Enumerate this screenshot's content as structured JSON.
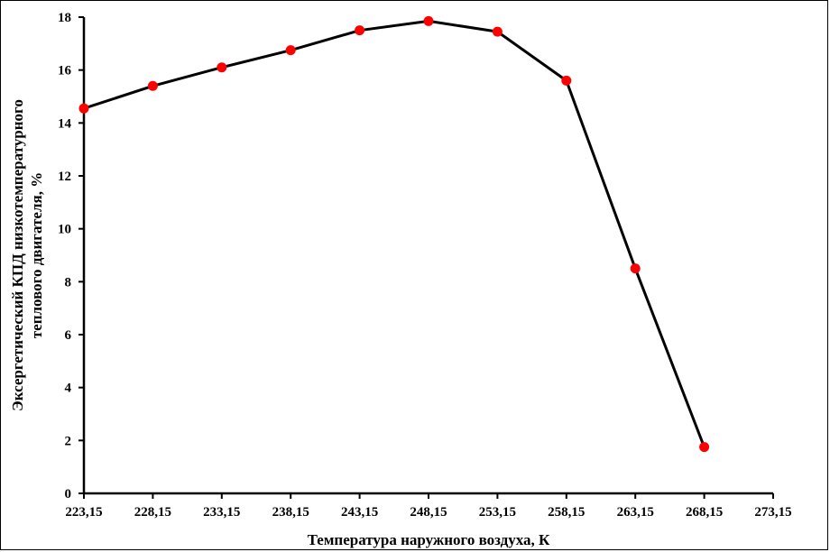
{
  "chart_data": {
    "type": "line",
    "title": "",
    "xlabel": "Температура наружного воздуха, К",
    "ylabel_line1": "Эксергетический КПД низкотемпературного",
    "ylabel_line2": "теплового двигателя, %",
    "x_ticks": [
      "223,15",
      "228,15",
      "233,15",
      "238,15",
      "243,15",
      "248,15",
      "253,15",
      "258,15",
      "263,15",
      "268,15",
      "273,15"
    ],
    "y_ticks": [
      "0",
      "2",
      "4",
      "6",
      "8",
      "10",
      "12",
      "14",
      "16",
      "18"
    ],
    "xlim": [
      223.15,
      273.15
    ],
    "ylim": [
      0,
      18
    ],
    "grid": false,
    "legend": "none",
    "series": [
      {
        "line_color": "#000000",
        "marker_color": "#ff0000",
        "x": [
          223.15,
          228.15,
          233.15,
          238.15,
          243.15,
          248.15,
          253.15,
          258.15,
          263.15,
          268.15
        ],
        "y": [
          14.55,
          15.4,
          16.1,
          16.75,
          17.5,
          17.85,
          17.45,
          15.6,
          8.5,
          1.75
        ]
      }
    ]
  }
}
